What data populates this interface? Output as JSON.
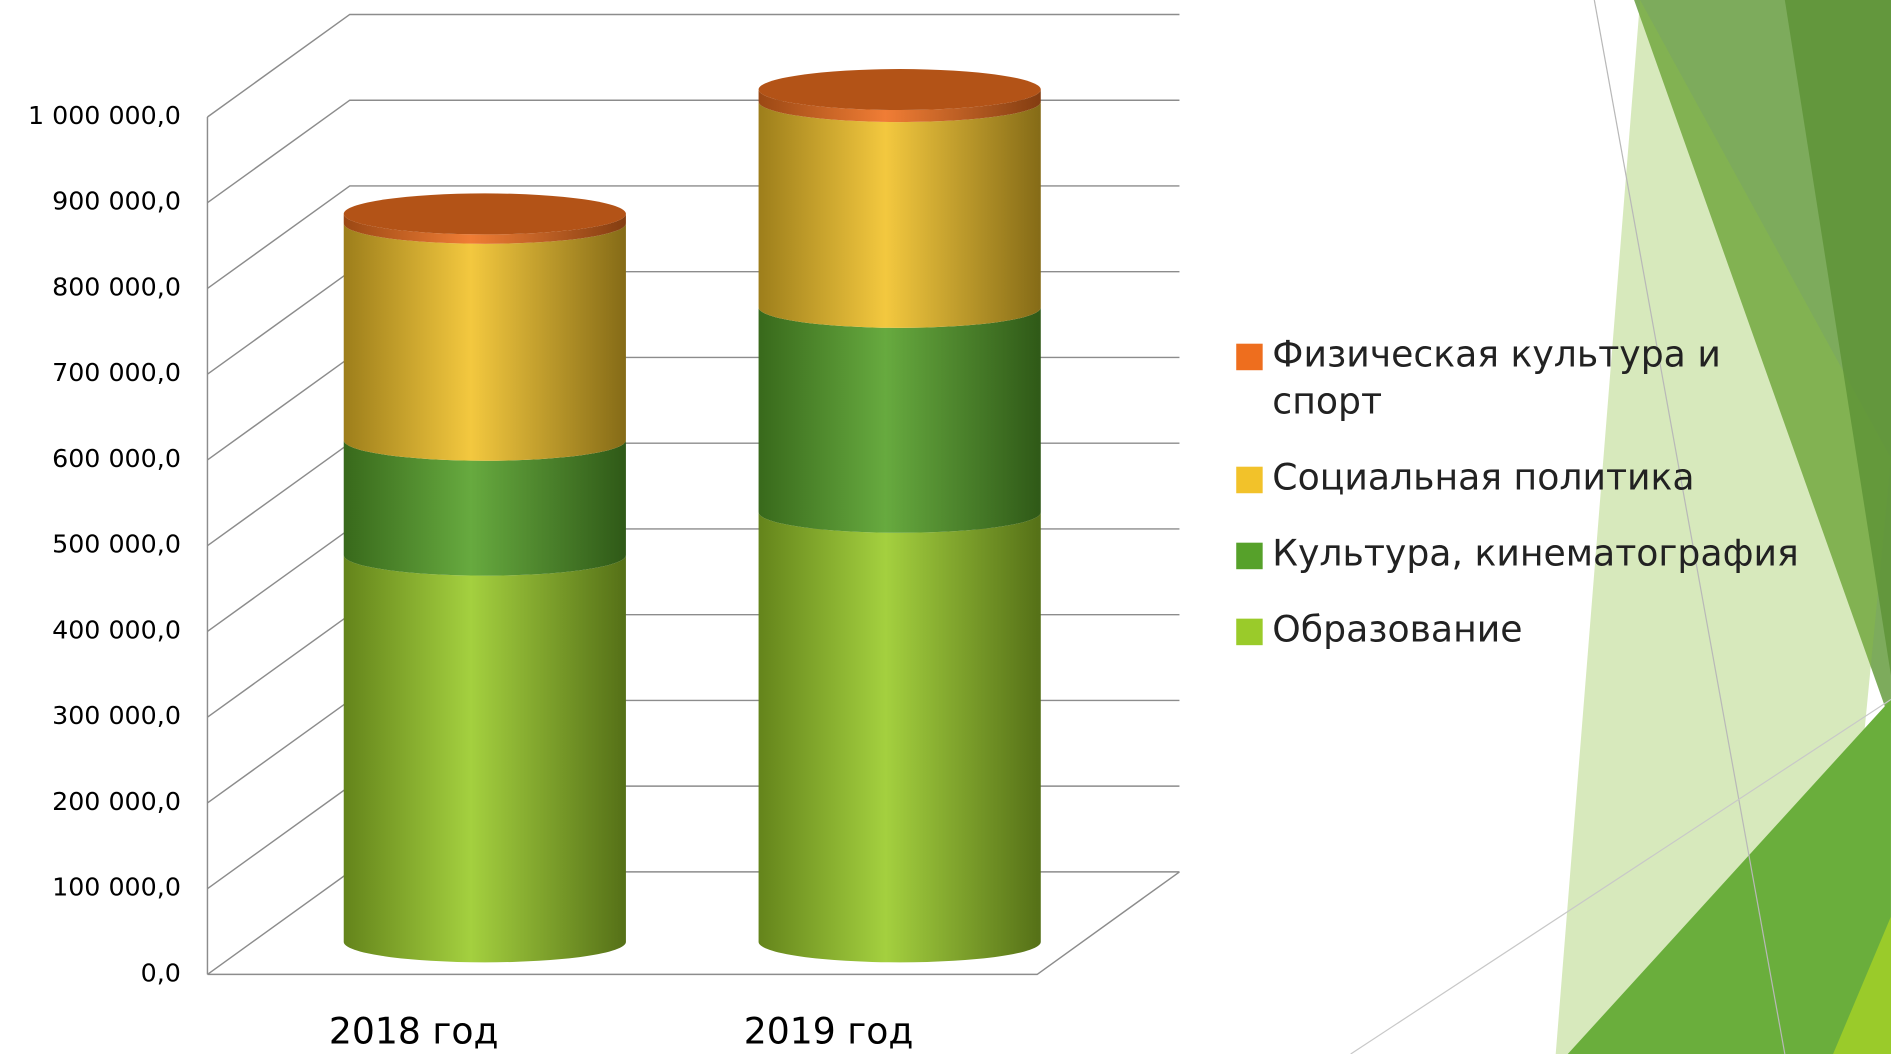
{
  "chart_data": {
    "type": "cylinder-stacked",
    "categories": [
      "2018 год",
      "2019 год"
    ],
    "series": [
      {
        "name": "Образование",
        "color": "#9acb2a",
        "values": [
          451000,
          501000
        ]
      },
      {
        "name": "Культура, кинематография",
        "color": "#56a12a",
        "values": [
          134000,
          239000
        ]
      },
      {
        "name": "Социальная политика",
        "color": "#f2c22a",
        "values": [
          253000,
          240000
        ]
      },
      {
        "name": "Физическая культура и спорт",
        "color": "#ee6e1e",
        "values": [
          11000,
          14000
        ]
      }
    ],
    "ylim": [
      0,
      1000000
    ],
    "yticks": [
      {
        "value": 0,
        "label": "0,0"
      },
      {
        "value": 100000,
        "label": "100 000,0"
      },
      {
        "value": 200000,
        "label": "200 000,0"
      },
      {
        "value": 300000,
        "label": "300 000,0"
      },
      {
        "value": 400000,
        "label": "400 000,0"
      },
      {
        "value": 500000,
        "label": "500 000,0"
      },
      {
        "value": 600000,
        "label": "600 000,0"
      },
      {
        "value": 700000,
        "label": "700 000,0"
      },
      {
        "value": 800000,
        "label": "800 000,0"
      },
      {
        "value": 900000,
        "label": "900 000,0"
      },
      {
        "value": 1000000,
        "label": "1 000 000,0"
      }
    ],
    "grid": true,
    "legend": "right"
  }
}
